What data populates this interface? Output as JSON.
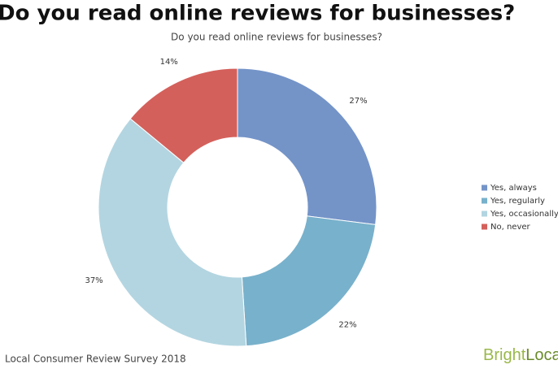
{
  "header": {
    "title": "Do you read online reviews for businesses?"
  },
  "chart_data": {
    "type": "donut",
    "title": "Do you read online reviews for businesses?",
    "categories": [
      "Yes, always",
      "Yes, regularly",
      "Yes, occasionally",
      "No, never"
    ],
    "values": [
      27,
      22,
      37,
      14
    ],
    "value_labels": [
      "27%",
      "22%",
      "37%",
      "14%"
    ],
    "colors": [
      "#7494c8",
      "#78b1cb",
      "#b3d5e1",
      "#d4605b"
    ],
    "legend": "right"
  },
  "footer": {
    "source": "Local Consumer Review Survey 2018",
    "logo": [
      "Bright",
      "Local"
    ]
  }
}
